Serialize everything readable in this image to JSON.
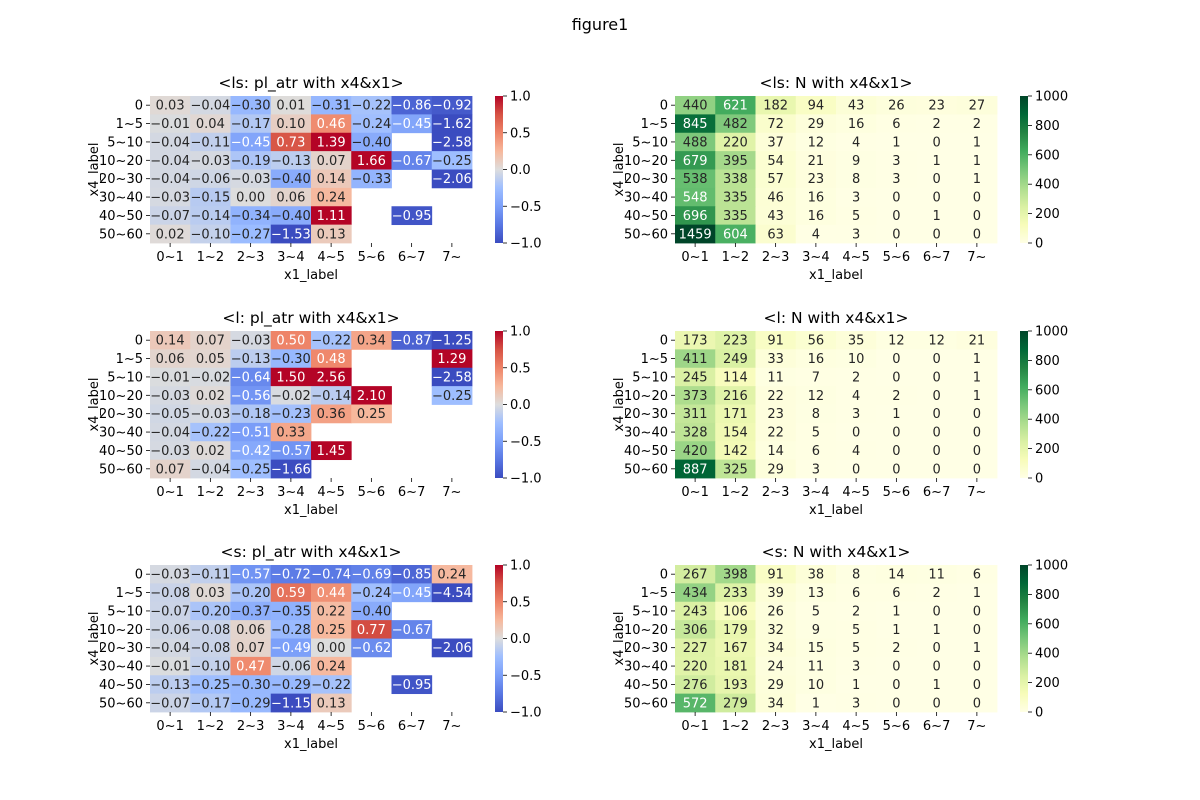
{
  "figure": {
    "suptitle": "figure1"
  },
  "chart_data": [
    {
      "type": "heatmap",
      "title": "<ls: pl_atr with x4&x1>",
      "xlabel": "x1_label",
      "ylabel": "x4_label",
      "x": [
        "0~1",
        "1~2",
        "2~3",
        "3~4",
        "4~5",
        "5~6",
        "6~7",
        "7~"
      ],
      "y": [
        "0",
        "1~5",
        "5~10",
        "10~20",
        "20~30",
        "30~40",
        "40~50",
        "50~60"
      ],
      "z": [
        [
          0.03,
          -0.04,
          -0.3,
          0.01,
          -0.31,
          -0.22,
          -0.86,
          -0.92
        ],
        [
          -0.01,
          0.04,
          -0.17,
          0.1,
          0.46,
          -0.24,
          -0.45,
          -1.62
        ],
        [
          -0.04,
          -0.11,
          -0.45,
          0.73,
          1.39,
          -0.4,
          null,
          -2.58
        ],
        [
          -0.04,
          -0.03,
          -0.19,
          -0.13,
          0.07,
          1.66,
          -0.67,
          -0.25
        ],
        [
          -0.04,
          -0.06,
          -0.03,
          -0.4,
          0.14,
          -0.33,
          null,
          -2.06
        ],
        [
          -0.03,
          -0.15,
          -0.0,
          0.06,
          0.24,
          null,
          null,
          null
        ],
        [
          -0.07,
          -0.14,
          -0.34,
          -0.4,
          1.11,
          null,
          -0.95,
          null
        ],
        [
          0.02,
          -0.1,
          -0.27,
          -1.53,
          0.13,
          null,
          null,
          null
        ]
      ],
      "colormap": "coolwarm",
      "vmin": -1,
      "vmax": 1,
      "colorbar_ticks": [
        "−1.0",
        "−0.5",
        "0.0",
        "0.5",
        "1.0"
      ]
    },
    {
      "type": "heatmap",
      "title": "<ls: N with x4&x1>",
      "xlabel": "x1_label",
      "ylabel": "x4_label",
      "x": [
        "0~1",
        "1~2",
        "2~3",
        "3~4",
        "4~5",
        "5~6",
        "6~7",
        "7~"
      ],
      "y": [
        "0",
        "1~5",
        "5~10",
        "10~20",
        "20~30",
        "30~40",
        "40~50",
        "50~60"
      ],
      "z": [
        [
          440,
          621,
          182,
          94,
          43,
          26,
          23,
          27
        ],
        [
          845,
          482,
          72,
          29,
          16,
          6,
          2,
          2
        ],
        [
          488,
          220,
          37,
          12,
          4,
          1,
          0,
          1
        ],
        [
          679,
          395,
          54,
          21,
          9,
          3,
          1,
          1
        ],
        [
          538,
          338,
          57,
          23,
          8,
          3,
          0,
          1
        ],
        [
          548,
          335,
          46,
          16,
          3,
          0,
          0,
          0
        ],
        [
          696,
          335,
          43,
          16,
          5,
          0,
          1,
          0
        ],
        [
          1459,
          604,
          63,
          4,
          3,
          0,
          0,
          0
        ]
      ],
      "colormap": "YlGn",
      "vmin": 0,
      "vmax": 1000,
      "colorbar_ticks": [
        "0",
        "200",
        "400",
        "600",
        "800",
        "1000"
      ]
    },
    {
      "type": "heatmap",
      "title": "<l: pl_atr with x4&x1>",
      "xlabel": "x1_label",
      "ylabel": "x4_label",
      "x": [
        "0~1",
        "1~2",
        "2~3",
        "3~4",
        "4~5",
        "5~6",
        "6~7",
        "7~"
      ],
      "y": [
        "0",
        "1~5",
        "5~10",
        "10~20",
        "20~30",
        "30~40",
        "40~50",
        "50~60"
      ],
      "z": [
        [
          0.14,
          0.07,
          -0.03,
          0.5,
          -0.22,
          0.34,
          -0.87,
          -1.25
        ],
        [
          0.06,
          0.05,
          -0.13,
          -0.3,
          0.48,
          null,
          null,
          1.29
        ],
        [
          -0.01,
          -0.02,
          -0.64,
          1.5,
          2.56,
          null,
          null,
          -2.58
        ],
        [
          -0.03,
          0.02,
          -0.56,
          -0.02,
          -0.14,
          2.1,
          null,
          -0.25
        ],
        [
          -0.05,
          -0.03,
          -0.18,
          -0.23,
          0.36,
          0.25,
          null,
          null
        ],
        [
          -0.04,
          -0.22,
          -0.51,
          0.33,
          null,
          null,
          null,
          null
        ],
        [
          -0.03,
          0.02,
          -0.42,
          -0.57,
          1.45,
          null,
          null,
          null
        ],
        [
          0.07,
          -0.04,
          -0.25,
          -1.66,
          null,
          null,
          null,
          null
        ]
      ],
      "colormap": "coolwarm",
      "vmin": -1,
      "vmax": 1,
      "colorbar_ticks": [
        "−1.0",
        "−0.5",
        "0.0",
        "0.5",
        "1.0"
      ]
    },
    {
      "type": "heatmap",
      "title": "<l: N with x4&x1>",
      "xlabel": "x1_label",
      "ylabel": "x4_label",
      "x": [
        "0~1",
        "1~2",
        "2~3",
        "3~4",
        "4~5",
        "5~6",
        "6~7",
        "7~"
      ],
      "y": [
        "0",
        "1~5",
        "5~10",
        "10~20",
        "20~30",
        "30~40",
        "40~50",
        "50~60"
      ],
      "z": [
        [
          173,
          223,
          91,
          56,
          35,
          12,
          12,
          21
        ],
        [
          411,
          249,
          33,
          16,
          10,
          0,
          0,
          1
        ],
        [
          245,
          114,
          11,
          7,
          2,
          0,
          0,
          1
        ],
        [
          373,
          216,
          22,
          12,
          4,
          2,
          0,
          1
        ],
        [
          311,
          171,
          23,
          8,
          3,
          1,
          0,
          0
        ],
        [
          328,
          154,
          22,
          5,
          0,
          0,
          0,
          0
        ],
        [
          420,
          142,
          14,
          6,
          4,
          0,
          0,
          0
        ],
        [
          887,
          325,
          29,
          3,
          0,
          0,
          0,
          0
        ]
      ],
      "colormap": "YlGn",
      "vmin": 0,
      "vmax": 1000,
      "colorbar_ticks": [
        "0",
        "200",
        "400",
        "600",
        "800",
        "1000"
      ]
    },
    {
      "type": "heatmap",
      "title": "<s: pl_atr with x4&x1>",
      "xlabel": "x1_label",
      "ylabel": "x4_label",
      "x": [
        "0~1",
        "1~2",
        "2~3",
        "3~4",
        "4~5",
        "5~6",
        "6~7",
        "7~"
      ],
      "y": [
        "0",
        "1~5",
        "5~10",
        "10~20",
        "20~30",
        "30~40",
        "40~50",
        "50~60"
      ],
      "z": [
        [
          -0.03,
          -0.11,
          -0.57,
          -0.72,
          -0.74,
          -0.69,
          -0.85,
          0.24
        ],
        [
          -0.08,
          0.03,
          -0.2,
          0.59,
          0.44,
          -0.24,
          -0.45,
          -4.54
        ],
        [
          -0.07,
          -0.2,
          -0.37,
          -0.35,
          0.22,
          -0.4,
          null,
          null
        ],
        [
          -0.06,
          -0.08,
          0.06,
          -0.28,
          0.25,
          0.77,
          -0.67,
          null
        ],
        [
          -0.04,
          -0.08,
          0.07,
          -0.49,
          0.0,
          -0.62,
          null,
          -2.06
        ],
        [
          -0.01,
          -0.1,
          0.47,
          -0.06,
          0.24,
          null,
          null,
          null
        ],
        [
          -0.13,
          -0.25,
          -0.3,
          -0.29,
          -0.22,
          null,
          -0.95,
          null
        ],
        [
          -0.07,
          -0.17,
          -0.29,
          -1.15,
          0.13,
          null,
          null,
          null
        ]
      ],
      "colormap": "coolwarm",
      "vmin": -1,
      "vmax": 1,
      "colorbar_ticks": [
        "−1.0",
        "−0.5",
        "0.0",
        "0.5",
        "1.0"
      ]
    },
    {
      "type": "heatmap",
      "title": "<s: N with x4&x1>",
      "xlabel": "x1_label",
      "ylabel": "x4_label",
      "x": [
        "0~1",
        "1~2",
        "2~3",
        "3~4",
        "4~5",
        "5~6",
        "6~7",
        "7~"
      ],
      "y": [
        "0",
        "1~5",
        "5~10",
        "10~20",
        "20~30",
        "30~40",
        "40~50",
        "50~60"
      ],
      "z": [
        [
          267,
          398,
          91,
          38,
          8,
          14,
          11,
          6
        ],
        [
          434,
          233,
          39,
          13,
          6,
          6,
          2,
          1
        ],
        [
          243,
          106,
          26,
          5,
          2,
          1,
          0,
          0
        ],
        [
          306,
          179,
          32,
          9,
          5,
          1,
          1,
          0
        ],
        [
          227,
          167,
          34,
          15,
          5,
          2,
          0,
          1
        ],
        [
          220,
          181,
          24,
          11,
          3,
          0,
          0,
          0
        ],
        [
          276,
          193,
          29,
          10,
          1,
          0,
          1,
          0
        ],
        [
          572,
          279,
          34,
          1,
          3,
          0,
          0,
          0
        ]
      ],
      "colormap": "YlGn",
      "vmin": 0,
      "vmax": 1000,
      "colorbar_ticks": [
        "0",
        "200",
        "400",
        "600",
        "800",
        "1000"
      ]
    }
  ]
}
